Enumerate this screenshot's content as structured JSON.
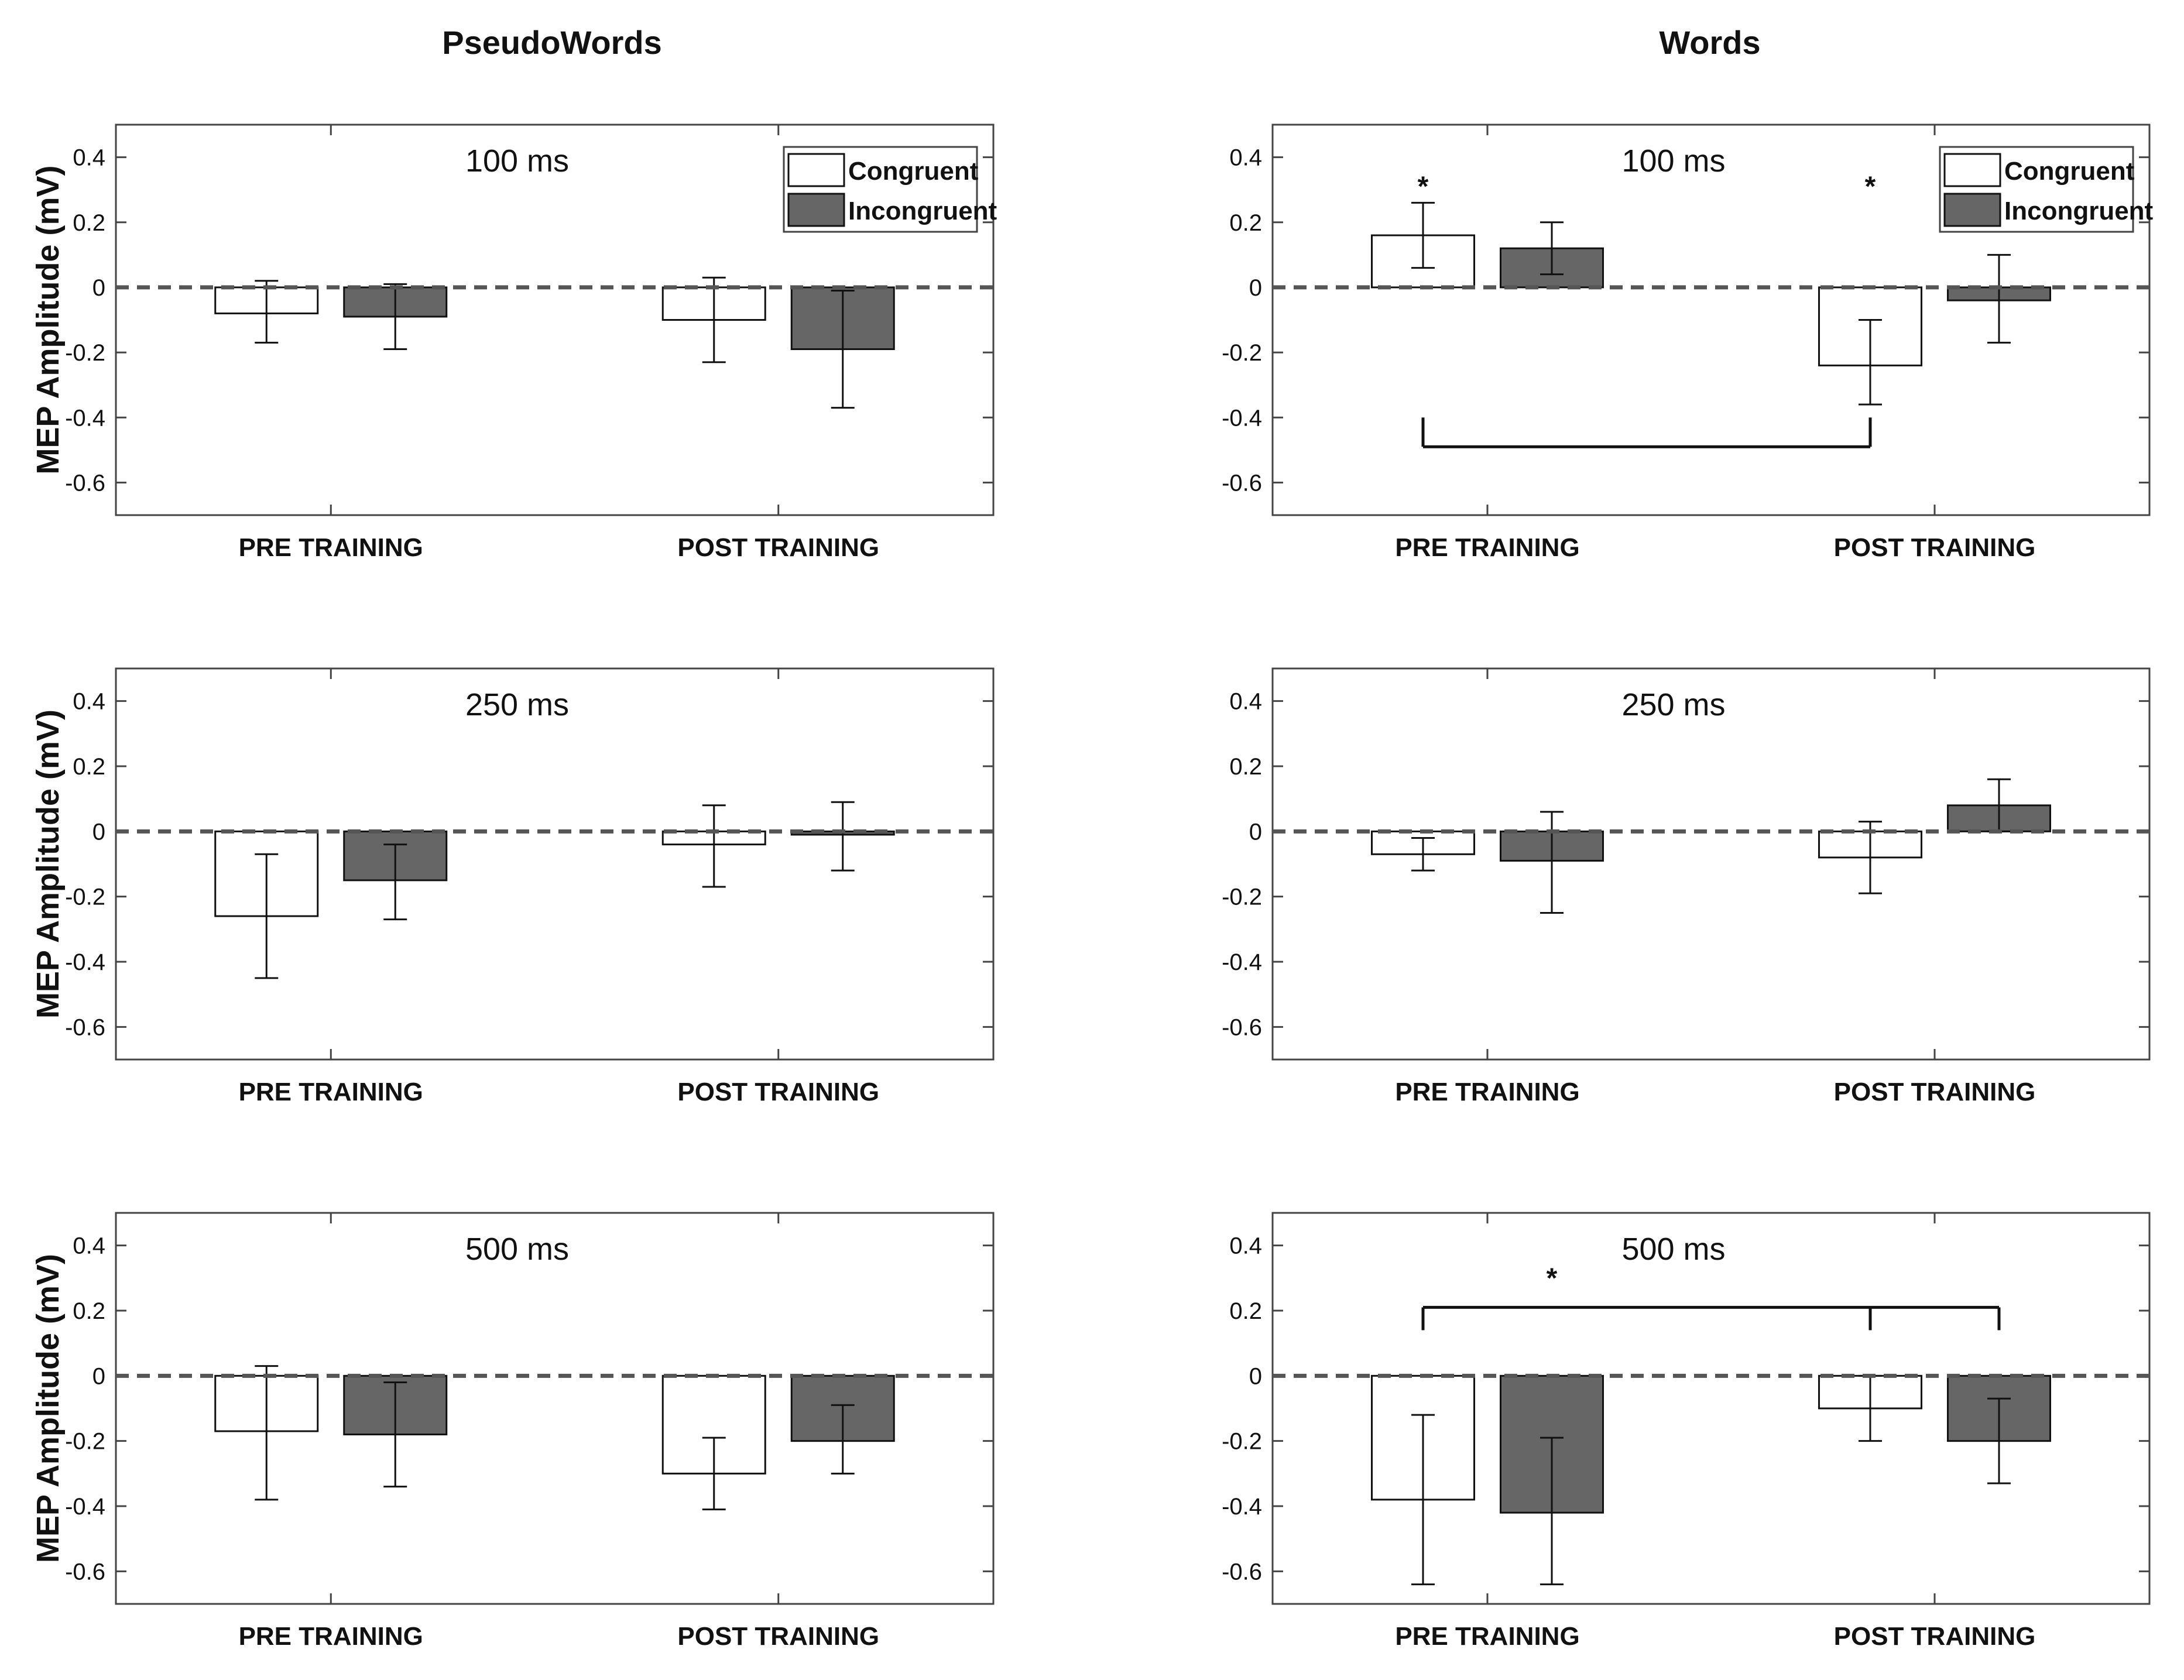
{
  "columns": [
    "PseudoWords",
    "Words"
  ],
  "series_names": [
    "Congruent",
    "Incongruent"
  ],
  "colors": {
    "congruent": "#ffffff",
    "incongruent": "#666666",
    "axis": "#444444",
    "zero_line": "#555555"
  },
  "chart_data": [
    {
      "type": "bar",
      "column": "PseudoWords",
      "label": "100 ms",
      "categories": [
        "PRE TRAINING",
        "POST TRAINING"
      ],
      "series": [
        {
          "name": "Congruent",
          "values": [
            -0.08,
            -0.1
          ],
          "err_low": [
            -0.17,
            -0.23
          ],
          "err_high": [
            0.02,
            0.03
          ]
        },
        {
          "name": "Incongruent",
          "values": [
            -0.09,
            -0.19
          ],
          "err_low": [
            -0.19,
            -0.37
          ],
          "err_high": [
            0.01,
            -0.01
          ]
        }
      ],
      "ylabel": "MEP Amplitude (mV)",
      "ylim": [
        -0.7,
        0.5
      ],
      "yticks": [
        "0.4",
        "0.2",
        "0",
        "-0.2",
        "-0.4",
        "-0.6"
      ],
      "legend": "top-right",
      "stars": [],
      "brackets": []
    },
    {
      "type": "bar",
      "column": "Words",
      "label": "100 ms",
      "categories": [
        "PRE TRAINING",
        "POST TRAINING"
      ],
      "series": [
        {
          "name": "Congruent",
          "values": [
            0.16,
            -0.24
          ],
          "err_low": [
            0.06,
            -0.36
          ],
          "err_high": [
            0.26,
            -0.1
          ]
        },
        {
          "name": "Incongruent",
          "values": [
            0.12,
            -0.04
          ],
          "err_low": [
            0.04,
            -0.17
          ],
          "err_high": [
            0.2,
            0.1
          ]
        }
      ],
      "ylabel": "",
      "ylim": [
        -0.7,
        0.5
      ],
      "yticks": [
        "0.4",
        "0.2",
        "0",
        "-0.2",
        "-0.4",
        "-0.6"
      ],
      "legend": "top-right",
      "stars": [
        {
          "text": "*",
          "category": 0,
          "series": 0,
          "y": 0.31
        },
        {
          "text": "*",
          "category": 1,
          "series": 0,
          "y": 0.31
        }
      ],
      "brackets": [
        {
          "direction": "down",
          "y": -0.49,
          "from": -0.4,
          "drops": [
            [
              0,
              0
            ],
            [
              1,
              0
            ]
          ]
        }
      ]
    },
    {
      "type": "bar",
      "column": "PseudoWords",
      "label": "250 ms",
      "categories": [
        "PRE TRAINING",
        "POST TRAINING"
      ],
      "series": [
        {
          "name": "Congruent",
          "values": [
            -0.26,
            -0.04
          ],
          "err_low": [
            -0.45,
            -0.17
          ],
          "err_high": [
            -0.07,
            0.08
          ]
        },
        {
          "name": "Incongruent",
          "values": [
            -0.15,
            -0.01
          ],
          "err_low": [
            -0.27,
            -0.12
          ],
          "err_high": [
            -0.04,
            0.09
          ]
        }
      ],
      "ylabel": "MEP Amplitude (mV)",
      "ylim": [
        -0.7,
        0.5
      ],
      "yticks": [
        "0.4",
        "0.2",
        "0",
        "-0.2",
        "-0.4",
        "-0.6"
      ],
      "legend": "",
      "stars": [],
      "brackets": []
    },
    {
      "type": "bar",
      "column": "Words",
      "label": "250 ms",
      "categories": [
        "PRE TRAINING",
        "POST TRAINING"
      ],
      "series": [
        {
          "name": "Congruent",
          "values": [
            -0.07,
            -0.08
          ],
          "err_low": [
            -0.12,
            -0.19
          ],
          "err_high": [
            -0.02,
            0.03
          ]
        },
        {
          "name": "Incongruent",
          "values": [
            -0.09,
            0.08
          ],
          "err_low": [
            -0.25,
            0.0
          ],
          "err_high": [
            0.06,
            0.16
          ]
        }
      ],
      "ylabel": "",
      "ylim": [
        -0.7,
        0.5
      ],
      "yticks": [
        "0.4",
        "0.2",
        "0",
        "-0.2",
        "-0.4",
        "-0.6"
      ],
      "legend": "",
      "stars": [],
      "brackets": []
    },
    {
      "type": "bar",
      "column": "PseudoWords",
      "label": "500 ms",
      "categories": [
        "PRE TRAINING",
        "POST TRAINING"
      ],
      "series": [
        {
          "name": "Congruent",
          "values": [
            -0.17,
            -0.3
          ],
          "err_low": [
            -0.38,
            -0.41
          ],
          "err_high": [
            0.03,
            -0.19
          ]
        },
        {
          "name": "Incongruent",
          "values": [
            -0.18,
            -0.2
          ],
          "err_low": [
            -0.34,
            -0.3
          ],
          "err_high": [
            -0.02,
            -0.09
          ]
        }
      ],
      "ylabel": "MEP Amplitude (mV)",
      "ylim": [
        -0.7,
        0.5
      ],
      "yticks": [
        "0.4",
        "0.2",
        "0",
        "-0.2",
        "-0.4",
        "-0.6"
      ],
      "legend": "",
      "stars": [],
      "brackets": []
    },
    {
      "type": "bar",
      "column": "Words",
      "label": "500 ms",
      "categories": [
        "PRE TRAINING",
        "POST TRAINING"
      ],
      "series": [
        {
          "name": "Congruent",
          "values": [
            -0.38,
            -0.1
          ],
          "err_low": [
            -0.64,
            -0.2
          ],
          "err_high": [
            -0.12,
            0.0
          ]
        },
        {
          "name": "Incongruent",
          "values": [
            -0.42,
            -0.2
          ],
          "err_low": [
            -0.64,
            -0.33
          ],
          "err_high": [
            -0.19,
            -0.07
          ]
        }
      ],
      "ylabel": "",
      "ylim": [
        -0.7,
        0.5
      ],
      "yticks": [
        "0.4",
        "0.2",
        "0",
        "-0.2",
        "-0.4",
        "-0.6"
      ],
      "legend": "",
      "stars": [
        {
          "text": "*",
          "category": 0,
          "series": 1,
          "y": 0.3
        }
      ],
      "brackets": [
        {
          "direction": "up",
          "y": 0.21,
          "from": 0.14,
          "drops": [
            [
              0,
              0
            ],
            [
              1,
              0
            ],
            [
              1,
              1
            ]
          ]
        }
      ]
    }
  ]
}
